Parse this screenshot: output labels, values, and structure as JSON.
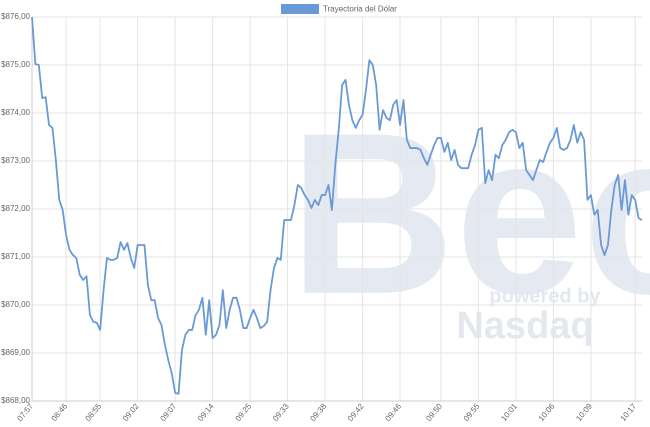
{
  "chart_data": {
    "type": "line",
    "legend": "top",
    "grid": true,
    "ylim": [
      868,
      876
    ],
    "yticks": [
      {
        "value": 868,
        "label": "$868,00"
      },
      {
        "value": 869,
        "label": "$869,00"
      },
      {
        "value": 870,
        "label": "$870,00"
      },
      {
        "value": 871,
        "label": "$871,00"
      },
      {
        "value": 872,
        "label": "$872,00"
      },
      {
        "value": 873,
        "label": "$873,00"
      },
      {
        "value": 874,
        "label": "$874,00"
      },
      {
        "value": 875,
        "label": "$875,00"
      },
      {
        "value": 876,
        "label": "$876,00"
      }
    ],
    "categories": [
      "07:57",
      null,
      null,
      null,
      null,
      null,
      null,
      null,
      null,
      null,
      "08:46",
      null,
      null,
      null,
      null,
      null,
      null,
      null,
      null,
      null,
      "08:55",
      null,
      null,
      null,
      null,
      null,
      null,
      null,
      null,
      null,
      null,
      "09:02",
      null,
      null,
      null,
      null,
      null,
      null,
      null,
      null,
      null,
      null,
      "09:07",
      null,
      null,
      null,
      null,
      null,
      null,
      null,
      null,
      null,
      null,
      "09:14",
      null,
      null,
      null,
      null,
      null,
      null,
      null,
      null,
      null,
      null,
      "09:25",
      null,
      null,
      null,
      null,
      null,
      null,
      null,
      null,
      null,
      null,
      "09:33",
      null,
      null,
      null,
      null,
      null,
      null,
      null,
      null,
      null,
      null,
      "09:38",
      null,
      null,
      null,
      null,
      null,
      null,
      null,
      null,
      null,
      null,
      "09:42",
      null,
      null,
      null,
      null,
      null,
      null,
      null,
      null,
      null,
      null,
      "09:46",
      null,
      null,
      null,
      null,
      null,
      null,
      null,
      null,
      null,
      null,
      null,
      "09:50",
      null,
      null,
      null,
      null,
      null,
      null,
      null,
      null,
      null,
      null,
      "09:55",
      null,
      null,
      null,
      null,
      null,
      null,
      null,
      null,
      null,
      null,
      "10:01",
      null,
      null,
      null,
      null,
      null,
      null,
      null,
      null,
      null,
      null,
      "10:06",
      null,
      null,
      null,
      null,
      null,
      null,
      null,
      null,
      null,
      null,
      "10:09",
      null,
      null,
      null,
      null,
      null,
      null,
      null,
      null,
      null,
      null,
      null,
      null,
      "10:17",
      null,
      null
    ],
    "series": [
      {
        "name": "Trayectoria del Dólar",
        "color": "#6a9ad6",
        "values": [
          876.0,
          875.02,
          875.0,
          874.31,
          874.33,
          873.75,
          873.69,
          873.02,
          872.19,
          871.98,
          871.46,
          871.15,
          871.04,
          870.98,
          870.63,
          870.52,
          870.6,
          869.79,
          869.65,
          869.63,
          869.48,
          870.31,
          870.98,
          870.94,
          870.94,
          870.98,
          871.31,
          871.15,
          871.29,
          870.98,
          870.77,
          871.25,
          871.25,
          871.25,
          870.42,
          870.1,
          870.1,
          869.73,
          869.58,
          869.17,
          868.85,
          868.58,
          868.17,
          868.15,
          869.06,
          869.38,
          869.48,
          869.48,
          869.79,
          869.9,
          870.15,
          869.38,
          870.1,
          869.31,
          869.38,
          869.58,
          870.31,
          869.52,
          869.9,
          870.15,
          870.15,
          869.9,
          869.52,
          869.52,
          869.73,
          869.9,
          869.73,
          869.52,
          869.56,
          869.65,
          870.31,
          870.77,
          870.98,
          870.94,
          871.77,
          871.77,
          871.77,
          872.08,
          872.5,
          872.44,
          872.29,
          872.19,
          872.02,
          872.19,
          872.08,
          872.29,
          872.29,
          872.5,
          871.98,
          872.92,
          873.65,
          874.58,
          874.69,
          874.17,
          873.85,
          873.69,
          873.85,
          873.96,
          874.48,
          875.1,
          875.0,
          874.58,
          873.65,
          874.06,
          873.9,
          873.85,
          874.17,
          874.27,
          873.75,
          874.27,
          873.44,
          873.27,
          873.27,
          873.27,
          873.23,
          873.06,
          872.92,
          873.13,
          873.33,
          873.48,
          873.48,
          873.19,
          873.38,
          873.02,
          873.23,
          872.92,
          872.85,
          872.85,
          872.85,
          873.13,
          873.33,
          873.65,
          873.69,
          872.54,
          872.81,
          872.6,
          873.13,
          873.06,
          873.33,
          873.44,
          873.6,
          873.65,
          873.6,
          873.27,
          873.38,
          872.81,
          872.71,
          872.6,
          872.81,
          873.02,
          872.98,
          873.19,
          873.38,
          873.48,
          873.69,
          873.27,
          873.23,
          873.27,
          873.44,
          873.75,
          873.38,
          873.6,
          873.44,
          872.19,
          872.29,
          871.88,
          871.98,
          871.25,
          871.04,
          871.25,
          871.98,
          872.5,
          872.71,
          871.98,
          872.6,
          871.88,
          872.29,
          872.19,
          871.81,
          871.77
        ]
      }
    ]
  },
  "watermark": {
    "logo": "Bec",
    "powered": "powered by",
    "brand": "Nasdaq"
  }
}
